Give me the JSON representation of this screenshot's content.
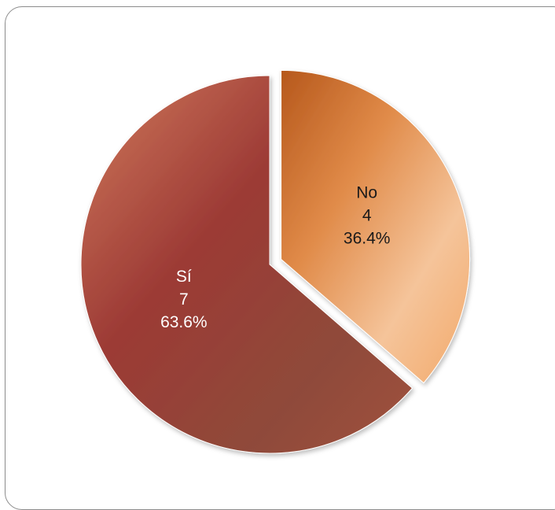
{
  "chart_data": {
    "type": "pie",
    "title": "",
    "categories": [
      "No",
      "Sí"
    ],
    "values": [
      4,
      7
    ],
    "percentages": [
      "36.4%",
      "63.6%"
    ],
    "exploded": [
      "No"
    ],
    "colors": {
      "No": [
        "#b6581c",
        "#e08a48",
        "#f5c49a",
        "#f2a96a"
      ],
      "Sí": [
        "#d17a5c",
        "#9c3a35",
        "#8f4a3a",
        "#a0523d"
      ]
    },
    "label_colors": {
      "No": "#1a1a1a",
      "Sí": "#ffffff"
    }
  }
}
